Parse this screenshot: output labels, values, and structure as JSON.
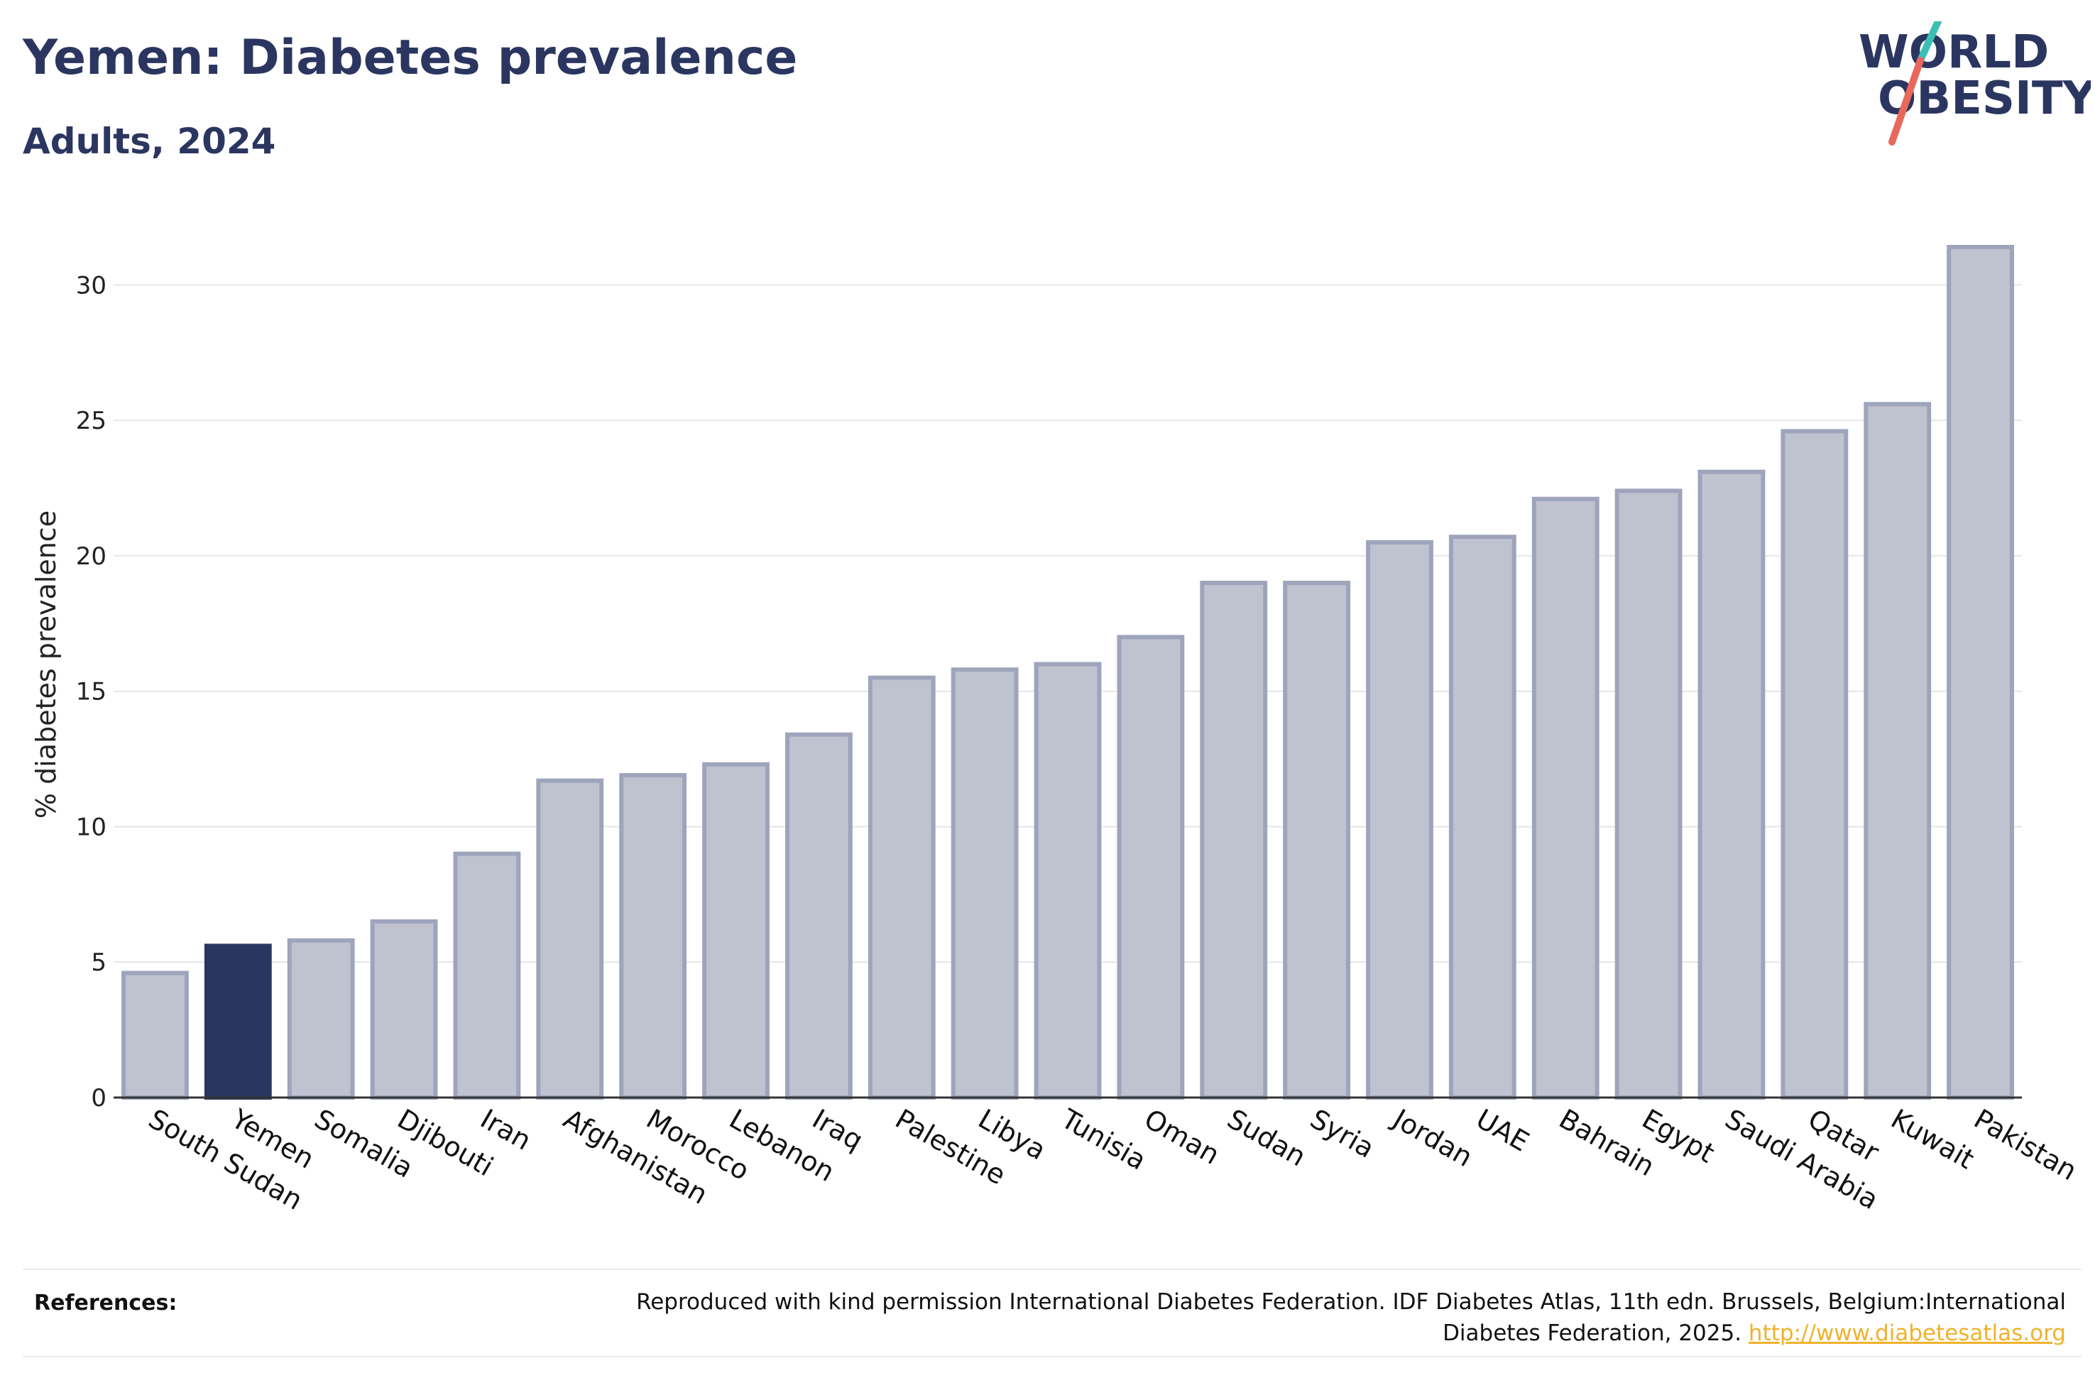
{
  "header": {
    "title": "Yemen: Diabetes prevalence",
    "subtitle": "Adults, 2024"
  },
  "logo": {
    "line1": "WORLD",
    "line2": "OBESITY",
    "colors": {
      "text": "#2b3660",
      "slash_top": "#3bbfb4",
      "slash_bottom": "#e8685a"
    }
  },
  "chart_data": {
    "type": "bar",
    "ylabel": "% diabetes prevalence",
    "xlabel": "",
    "ylim": [
      0,
      32.5
    ],
    "yticks": [
      0,
      5,
      10,
      15,
      20,
      25,
      30
    ],
    "grid": true,
    "highlight": "Yemen",
    "categories": [
      "South Sudan",
      "Yemen",
      "Somalia",
      "Djibouti",
      "Iran",
      "Afghanistan",
      "Morocco",
      "Lebanon",
      "Iraq",
      "Palestine",
      "Libya",
      "Tunisia",
      "Oman",
      "Sudan",
      "Syria",
      "Jordan",
      "UAE",
      "Bahrain",
      "Egypt",
      "Saudi Arabia",
      "Qatar",
      "Kuwait",
      "Pakistan"
    ],
    "values": [
      4.6,
      5.6,
      5.8,
      6.5,
      9.0,
      11.7,
      11.9,
      12.3,
      13.4,
      15.5,
      15.8,
      16.0,
      17.0,
      19.0,
      19.0,
      20.5,
      20.7,
      22.1,
      22.4,
      23.1,
      24.6,
      25.6,
      31.4
    ],
    "colors": {
      "bar_fill": "#bfc2cf",
      "bar_stroke": "#9ea4bc",
      "highlight_fill": "#2b3660",
      "grid": "#e6e6e6",
      "axis": "#333333"
    }
  },
  "footer": {
    "references_label": "References:",
    "reference_text": "Reproduced with kind permission International Diabetes Federation. IDF Diabetes Atlas, 11th edn. Brussels, Belgium:International Diabetes Federation, 2025. ",
    "reference_link": "http://www.diabetesatlas.org"
  }
}
